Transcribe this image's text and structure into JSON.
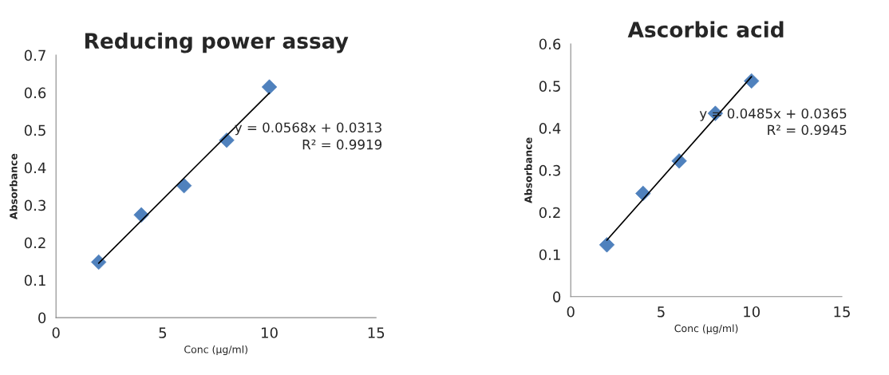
{
  "chart_data": [
    {
      "type": "scatter",
      "title": "Reducing power assay",
      "xlabel": "Conc (µg/ml)",
      "ylabel": "Absorbance",
      "annotations": [
        "y = 0.0568x + 0.0313",
        "R² = 0.9919"
      ],
      "xlim": [
        0,
        15
      ],
      "xticks": [
        0,
        5,
        10,
        15
      ],
      "ylim": [
        0,
        0.7
      ],
      "yticks": [
        0,
        0.1,
        0.2,
        0.3,
        0.4,
        0.5,
        0.6,
        0.7
      ],
      "grid": false,
      "legend": false,
      "series": [
        {
          "color": "#4f81bd",
          "marker": "diamond",
          "x": [
            2,
            4,
            6,
            8,
            10
          ],
          "values": [
            0.148,
            0.274,
            0.352,
            0.473,
            0.615
          ]
        },
        {
          "type": "line",
          "color": "#000000",
          "marker": "none",
          "line_style": "solid",
          "x": [
            2,
            10
          ],
          "values": [
            0.145,
            0.599
          ]
        }
      ]
    },
    {
      "type": "scatter",
      "title": "Ascorbic acid",
      "xlabel": "Conc (µg/ml)",
      "ylabel": "Absorbance",
      "annotations": [
        "y = 0.0485x + 0.0365",
        "R² = 0.9945"
      ],
      "xlim": [
        0,
        15
      ],
      "xticks": [
        0,
        5,
        10,
        15
      ],
      "ylim": [
        0,
        0.6
      ],
      "yticks": [
        0,
        0.1,
        0.2,
        0.3,
        0.4,
        0.5,
        0.6
      ],
      "grid": false,
      "legend": false,
      "series": [
        {
          "color": "#4f81bd",
          "marker": "diamond",
          "x": [
            2,
            4,
            6,
            8,
            10
          ],
          "values": [
            0.123,
            0.245,
            0.322,
            0.435,
            0.512
          ]
        },
        {
          "type": "line",
          "color": "#000000",
          "marker": "none",
          "line_style": "solid",
          "x": [
            2,
            10
          ],
          "values": [
            0.134,
            0.522
          ]
        }
      ]
    }
  ]
}
